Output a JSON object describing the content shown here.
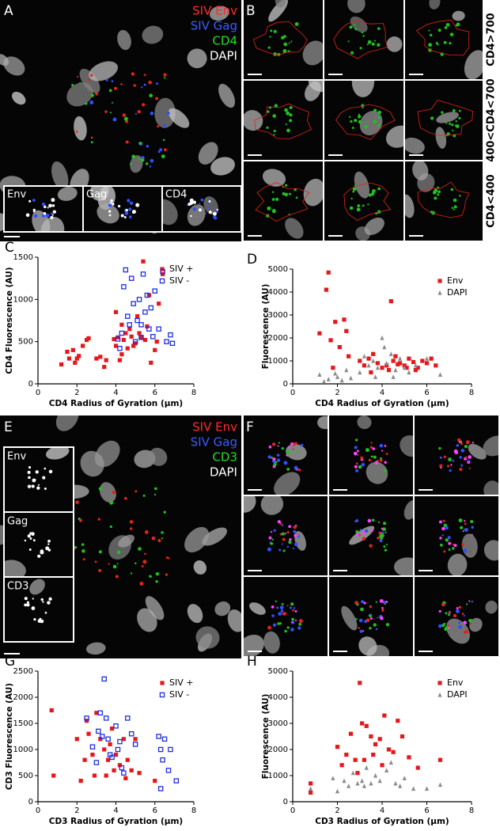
{
  "panels": {
    "A": {
      "letter": "A",
      "legend": [
        {
          "text": "SIV Env",
          "color": "#ff2a2a"
        },
        {
          "text": "SIV Gag",
          "color": "#3a5cff"
        },
        {
          "text": "CD4",
          "color": "#22dd22"
        },
        {
          "text": "DAPI",
          "color": "#ffffff"
        }
      ],
      "insets": [
        "Env",
        "Gag",
        "CD4"
      ]
    },
    "B": {
      "letter": "B",
      "row_labels": [
        "CD4>700",
        "400<CD4<700",
        "CD4<400"
      ]
    },
    "E": {
      "letter": "E",
      "legend": [
        {
          "text": "SIV Env",
          "color": "#ff2a2a"
        },
        {
          "text": "SIV Gag",
          "color": "#3a5cff"
        },
        {
          "text": "CD3",
          "color": "#22dd22"
        },
        {
          "text": "DAPI",
          "color": "#ffffff"
        }
      ],
      "insets": [
        "Env",
        "Gag",
        "CD3"
      ]
    },
    "F": {
      "letter": "F"
    }
  },
  "chart_data": [
    {
      "type": "scatter",
      "panel": "C",
      "x_label": "CD4 Radius of Gyration (μm)",
      "y_label": "CD4 Fluorescence (AU)",
      "xlim": [
        0,
        8
      ],
      "xticks": [
        0,
        2,
        4,
        6,
        8
      ],
      "ylim": [
        0,
        1500
      ],
      "yticks": [
        0,
        500,
        1000,
        1500
      ],
      "legend": "top-right",
      "series": [
        {
          "name": "SIV +",
          "color": "#e8161b",
          "marker": "square",
          "x": [
            1.2,
            1.5,
            1.6,
            1.8,
            1.9,
            2.0,
            2.1,
            2.3,
            2.5,
            2.6,
            3.0,
            3.2,
            3.4,
            3.5,
            4.0,
            4.1,
            4.2,
            4.3,
            4.4,
            4.5,
            4.6,
            4.7,
            4.8,
            4.9,
            5.0,
            5.1,
            5.2,
            5.3,
            5.4,
            5.5,
            5.6,
            5.8,
            6.0,
            6.2,
            6.4,
            4.3,
            4.0,
            3.9,
            5.7,
            6.1
          ],
          "values": [
            230,
            380,
            300,
            400,
            250,
            300,
            330,
            450,
            520,
            540,
            300,
            320,
            200,
            280,
            450,
            550,
            280,
            350,
            520,
            600,
            420,
            650,
            560,
            450,
            480,
            800,
            600,
            550,
            1450,
            520,
            680,
            250,
            400,
            950,
            1300,
            700,
            850,
            530,
            1050,
            500
          ]
        },
        {
          "name": "SIV -",
          "color": "#1f2fe0",
          "marker": "open-square",
          "x": [
            4.1,
            4.3,
            4.4,
            4.5,
            4.6,
            4.7,
            4.8,
            4.9,
            5.0,
            5.1,
            5.2,
            5.3,
            5.4,
            5.5,
            5.6,
            5.7,
            5.8,
            6.0,
            6.2,
            6.4,
            6.6,
            6.8,
            6.9,
            5.9,
            5.3,
            4.2
          ],
          "values": [
            530,
            600,
            1150,
            1350,
            800,
            700,
            1250,
            950,
            500,
            750,
            1000,
            700,
            1300,
            850,
            1050,
            650,
            900,
            1100,
            650,
            1330,
            500,
            580,
            480,
            560,
            550,
            420
          ]
        }
      ]
    },
    {
      "type": "scatter",
      "panel": "D",
      "x_label": "CD4 Radius of Gyration (μm)",
      "y_label": "Fluorescence (AU)",
      "xlim": [
        0,
        8
      ],
      "xticks": [
        0,
        2,
        4,
        6,
        8
      ],
      "ylim": [
        0,
        5000
      ],
      "yticks": [
        0,
        1000,
        2000,
        3000,
        4000,
        5000
      ],
      "legend": "top-right",
      "series": [
        {
          "name": "Env",
          "color": "#e8161b",
          "marker": "square",
          "x": [
            1.2,
            1.5,
            1.6,
            1.7,
            1.9,
            2.1,
            2.3,
            2.4,
            2.5,
            1.8,
            3.0,
            3.2,
            3.4,
            3.6,
            3.8,
            4.0,
            4.2,
            4.4,
            4.5,
            4.6,
            4.8,
            5.0,
            5.2,
            5.4,
            5.6,
            5.8,
            6.0,
            6.2,
            6.4,
            3.5,
            4.3,
            4.7,
            5.1,
            5.5
          ],
          "values": [
            2200,
            4100,
            4850,
            1900,
            2700,
            1600,
            2800,
            2300,
            1200,
            700,
            1000,
            800,
            1100,
            1300,
            900,
            700,
            800,
            3600,
            1000,
            1200,
            900,
            800,
            1100,
            950,
            700,
            1000,
            900,
            1100,
            800,
            500,
            600,
            850,
            700,
            600
          ]
        },
        {
          "name": "DAPI",
          "color": "#8c8c8c",
          "marker": "triangle",
          "x": [
            1.2,
            1.4,
            1.6,
            1.9,
            2.0,
            2.2,
            2.4,
            2.6,
            3.0,
            3.2,
            3.4,
            3.6,
            3.8,
            4.0,
            4.1,
            4.2,
            4.4,
            4.6,
            4.8,
            5.0,
            5.2,
            5.5,
            6.0,
            6.6,
            3.7,
            4.5
          ],
          "values": [
            400,
            100,
            200,
            450,
            300,
            150,
            600,
            250,
            500,
            1200,
            800,
            1000,
            700,
            2000,
            1600,
            900,
            1300,
            600,
            1100,
            700,
            500,
            800,
            1100,
            400,
            300,
            300
          ]
        }
      ]
    },
    {
      "type": "scatter",
      "panel": "G",
      "x_label": "CD3 Radius of Gyration (μm)",
      "y_label": "CD3 Fluorescence (AU)",
      "xlim": [
        0,
        8
      ],
      "xticks": [
        0,
        2,
        4,
        6,
        8
      ],
      "ylim": [
        0,
        2500
      ],
      "yticks": [
        0,
        500,
        1000,
        1500,
        2000,
        2500
      ],
      "legend": "top-right",
      "series": [
        {
          "name": "SIV +",
          "color": "#e8161b",
          "marker": "square",
          "x": [
            0.7,
            0.8,
            2.0,
            2.2,
            2.4,
            2.6,
            2.8,
            3.0,
            3.2,
            3.4,
            3.6,
            3.8,
            4.0,
            4.2,
            4.4,
            4.6,
            4.8,
            5.0,
            3.5,
            2.9,
            3.9,
            4.5,
            6.0,
            5.2,
            2.5,
            3.7
          ],
          "values": [
            1750,
            500,
            1200,
            400,
            800,
            1300,
            900,
            1700,
            1200,
            1000,
            800,
            1400,
            900,
            700,
            1200,
            800,
            600,
            1200,
            500,
            500,
            600,
            450,
            400,
            550,
            1550,
            1100
          ]
        },
        {
          "name": "SIV -",
          "color": "#1f2fe0",
          "marker": "open-square",
          "x": [
            2.5,
            2.8,
            3.0,
            3.1,
            3.2,
            3.3,
            3.4,
            3.5,
            3.6,
            3.7,
            3.8,
            4.0,
            4.2,
            4.3,
            4.4,
            4.6,
            4.8,
            5.0,
            6.2,
            6.3,
            6.4,
            6.5,
            6.7,
            6.8,
            7.1,
            6.3,
            4.1
          ],
          "values": [
            1600,
            1050,
            750,
            1350,
            1700,
            1250,
            2350,
            1600,
            1200,
            900,
            850,
            1450,
            1150,
            650,
            550,
            1600,
            1300,
            1100,
            1250,
            1000,
            800,
            1200,
            600,
            1000,
            400,
            250,
            1000
          ]
        }
      ]
    },
    {
      "type": "scatter",
      "panel": "H",
      "x_label": "CD3 Radius of Gyration (μm)",
      "y_label": "Fluorescence (AU)",
      "xlim": [
        0,
        8
      ],
      "xticks": [
        0,
        2,
        4,
        6,
        8
      ],
      "ylim": [
        0,
        5000
      ],
      "yticks": [
        0,
        1000,
        2000,
        3000,
        4000,
        5000
      ],
      "legend": "top-right",
      "series": [
        {
          "name": "Env",
          "color": "#e8161b",
          "marker": "square",
          "x": [
            0.8,
            0.8,
            2.0,
            2.2,
            2.4,
            2.6,
            2.8,
            3.0,
            3.1,
            3.3,
            3.5,
            3.7,
            3.9,
            4.1,
            4.3,
            4.5,
            4.7,
            4.9,
            5.2,
            5.6,
            6.6,
            2.9,
            3.2,
            3.6,
            4.0
          ],
          "values": [
            700,
            350,
            2100,
            1400,
            1800,
            2600,
            1600,
            4550,
            3000,
            2900,
            2500,
            2200,
            2400,
            3300,
            2000,
            1900,
            3100,
            2500,
            1700,
            1300,
            1600,
            1100,
            1600,
            1800,
            1400
          ]
        },
        {
          "name": "DAPI",
          "color": "#8c8c8c",
          "marker": "triangle",
          "x": [
            0.8,
            1.8,
            2.0,
            2.3,
            2.5,
            2.7,
            2.9,
            3.1,
            3.3,
            3.5,
            3.7,
            3.9,
            4.2,
            4.4,
            4.6,
            4.8,
            5.0,
            5.4,
            6.0,
            6.6,
            3.2
          ],
          "values": [
            500,
            900,
            400,
            800,
            600,
            1100,
            700,
            800,
            1300,
            700,
            1000,
            800,
            1200,
            1500,
            700,
            600,
            900,
            500,
            500,
            650,
            600
          ]
        }
      ]
    }
  ]
}
